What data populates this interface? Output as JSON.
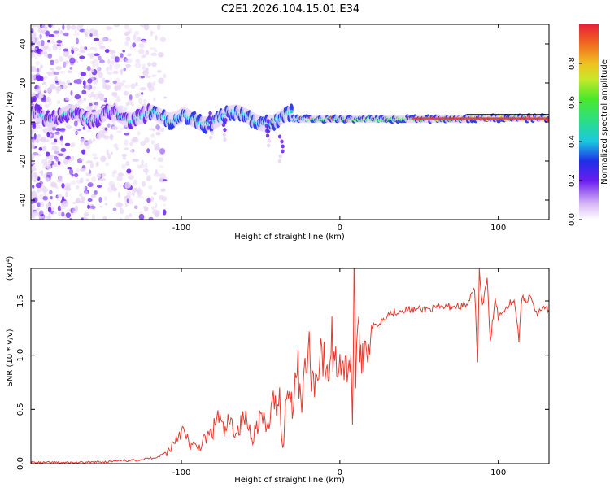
{
  "title": "C2E1.2026.104.15.01.E34",
  "chart_data": [
    {
      "type": "heatmap",
      "name": "spectrogram",
      "xlabel": "Height of straight line (km)",
      "ylabel": "Frequency (Hz)",
      "xlim": [
        -195,
        132
      ],
      "ylim": [
        -50,
        50
      ],
      "xticks": [
        -100,
        0,
        100
      ],
      "yticks": [
        -40,
        -20,
        0,
        20,
        40
      ],
      "colorbar": {
        "label": "Normalized spectral amplitude",
        "range": [
          0,
          1
        ],
        "ticks": [
          "0.0",
          "0.2",
          "0.4",
          "0.6",
          "0.8"
        ],
        "tick_values": [
          0.0,
          0.2,
          0.4,
          0.6,
          0.8
        ]
      },
      "colors": {
        "low": "#e8d6f5",
        "purple": "#6a1cf0",
        "blue": "#1f2fe8",
        "cyan": "#19d6d0",
        "green": "#33e05a",
        "yellow": "#e8e82a",
        "red": "#e83030"
      }
    },
    {
      "type": "line",
      "name": "snr",
      "xlabel": "Height of straight line (km)",
      "ylabel": "SNR (10 * v/v)",
      "scale_label": "(x10⁴)",
      "xlim": [
        -195,
        132
      ],
      "ylim": [
        0,
        1.8
      ],
      "xticks": [
        -100,
        0,
        100
      ],
      "yticks": [
        0.0,
        0.5,
        1.0,
        1.5
      ],
      "ytick_labels": [
        "0.0",
        "0.5",
        "1.0",
        "1.5"
      ],
      "color": "#e83a2f",
      "series": [
        {
          "name": "SNR",
          "x": [
            -195,
            -160,
            -130,
            -115,
            -108,
            -104,
            -100,
            -95,
            -90,
            -85,
            -80,
            -77,
            -73,
            -70,
            -65,
            -60,
            -55,
            -50,
            -46,
            -42,
            -38,
            -36,
            -33,
            -30,
            -27,
            -24,
            -20,
            -16,
            -12,
            -8,
            -5,
            -2,
            0,
            4,
            7,
            8,
            9,
            10,
            12,
            15,
            20,
            25,
            30,
            35,
            40,
            50,
            60,
            70,
            80,
            85,
            87,
            88,
            90,
            93,
            95,
            98,
            100,
            105,
            110,
            113,
            115,
            118,
            120,
            124,
            128,
            132
          ],
          "y": [
            0.01,
            0.01,
            0.03,
            0.06,
            0.12,
            0.22,
            0.32,
            0.18,
            0.14,
            0.22,
            0.3,
            0.45,
            0.28,
            0.38,
            0.3,
            0.42,
            0.25,
            0.45,
            0.3,
            0.55,
            0.62,
            0.12,
            0.75,
            0.55,
            0.92,
            0.6,
            1.05,
            0.7,
            1.1,
            0.75,
            1.12,
            0.9,
            1.0,
            0.85,
            1.05,
            0.35,
            1.68,
            0.9,
            1.1,
            1.05,
            1.25,
            1.3,
            1.38,
            1.4,
            1.42,
            1.42,
            1.43,
            1.45,
            1.46,
            1.6,
            0.95,
            1.78,
            1.45,
            1.7,
            1.1,
            1.55,
            1.35,
            1.45,
            1.52,
            1.15,
            1.55,
            1.48,
            1.58,
            1.38,
            1.42,
            1.42
          ]
        }
      ]
    }
  ]
}
